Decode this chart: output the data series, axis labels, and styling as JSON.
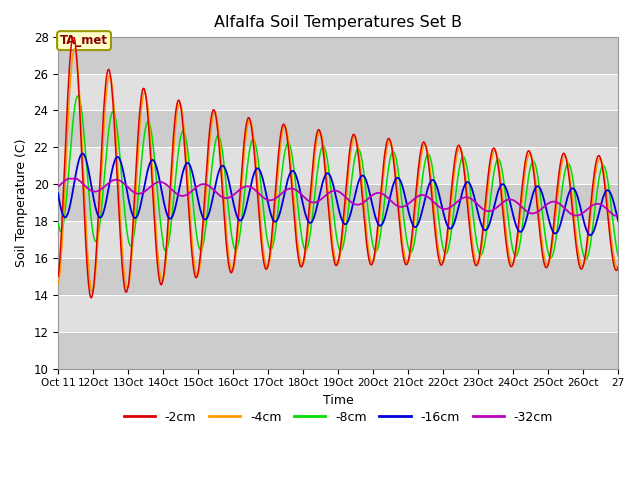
{
  "title": "Alfalfa Soil Temperatures Set B",
  "xlabel": "Time",
  "ylabel": "Soil Temperature (C)",
  "ylim": [
    10,
    28
  ],
  "yticks": [
    10,
    12,
    14,
    16,
    18,
    20,
    22,
    24,
    26,
    28
  ],
  "background_color": "#ffffff",
  "plot_bg_color": "#e8e8e8",
  "legend_entries": [
    "-2cm",
    "-4cm",
    "-8cm",
    "-16cm",
    "-32cm"
  ],
  "line_colors": [
    "#dd0000",
    "#ff9900",
    "#00dd00",
    "#0000dd",
    "#bb00bb"
  ],
  "annotation_text": "TA_met",
  "annotation_color": "#880000",
  "annotation_bg": "#ffffcc",
  "annotation_border": "#999900",
  "xtick_labels": [
    "Oct 11",
    "12Oct",
    "13Oct",
    "14Oct",
    "15Oct",
    "16Oct",
    "17Oct",
    "18Oct",
    "19Oct",
    "20Oct",
    "21Oct",
    "22Oct",
    "23Oct",
    "24Oct",
    "25Oct",
    "26Oct",
    "27"
  ],
  "grid_colors": [
    "#cccccc",
    "#e0e0e0"
  ]
}
